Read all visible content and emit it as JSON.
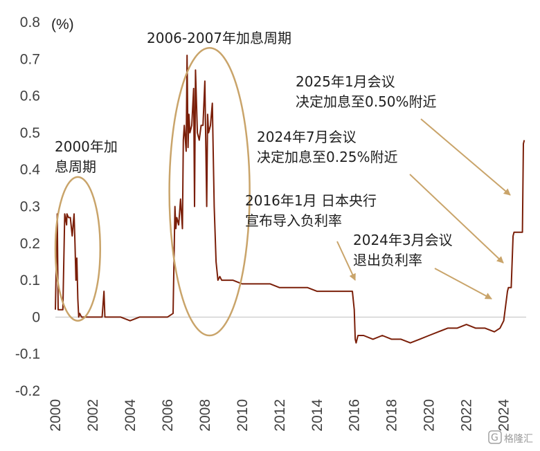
{
  "chart_data": {
    "type": "line",
    "unit_label": "(%)",
    "title": "",
    "xlabel": "",
    "ylabel": "",
    "ylim": [
      -0.2,
      0.8
    ],
    "xlim": [
      2000,
      2025.2
    ],
    "grid": false,
    "legend": "none",
    "y_ticks": [
      "0.8",
      "0.7",
      "0.6",
      "0.5",
      "0.4",
      "0.3",
      "0.2",
      "0.1",
      "0",
      "-0.1",
      "-0.2"
    ],
    "y_tick_values": [
      0.8,
      0.7,
      0.6,
      0.5,
      0.4,
      0.3,
      0.2,
      0.1,
      0,
      -0.1,
      -0.2
    ],
    "x_ticks": [
      "2000",
      "2002",
      "2004",
      "2006",
      "2008",
      "2010",
      "2012",
      "2014",
      "2016",
      "2018",
      "2020",
      "2022",
      "2024"
    ],
    "x_tick_values": [
      2000,
      2002,
      2004,
      2006,
      2008,
      2010,
      2012,
      2014,
      2016,
      2018,
      2020,
      2022,
      2024
    ],
    "series": [
      {
        "color": "#7a1e08",
        "x": [
          2000.0,
          2000.1,
          2000.15,
          2000.3,
          2000.4,
          2000.5,
          2000.6,
          2000.62,
          2000.7,
          2000.8,
          2000.9,
          2001.0,
          2001.05,
          2001.1,
          2001.15,
          2001.2,
          2001.25,
          2001.3,
          2001.4,
          2001.5,
          2002.0,
          2002.5,
          2002.6,
          2002.65,
          2003.0,
          2003.5,
          2004.0,
          2004.5,
          2005.0,
          2005.5,
          2006.0,
          2006.3,
          2006.4,
          2006.45,
          2006.5,
          2006.6,
          2006.7,
          2006.8,
          2006.85,
          2006.9,
          2007.0,
          2007.05,
          2007.1,
          2007.15,
          2007.2,
          2007.3,
          2007.4,
          2007.45,
          2007.5,
          2007.6,
          2007.7,
          2007.8,
          2007.9,
          2008.0,
          2008.1,
          2008.15,
          2008.2,
          2008.3,
          2008.4,
          2008.5,
          2008.6,
          2008.7,
          2008.8,
          2008.9,
          2009.0,
          2009.5,
          2010.0,
          2010.5,
          2011.0,
          2011.5,
          2012.0,
          2012.5,
          2013.0,
          2013.5,
          2014.0,
          2014.5,
          2015.0,
          2015.5,
          2015.9,
          2016.0,
          2016.05,
          2016.1,
          2016.2,
          2016.5,
          2017.0,
          2017.5,
          2018.0,
          2018.5,
          2019.0,
          2019.5,
          2020.0,
          2020.5,
          2021.0,
          2021.5,
          2022.0,
          2022.5,
          2023.0,
          2023.5,
          2023.8,
          2024.0,
          2024.2,
          2024.25,
          2024.4,
          2024.5,
          2024.55,
          2024.7,
          2024.9,
          2025.0,
          2025.05,
          2025.1
        ],
        "values": [
          0.02,
          0.28,
          0.02,
          0.02,
          0.02,
          0.28,
          0.25,
          0.28,
          0.27,
          0.27,
          0.22,
          0.28,
          0.2,
          0.1,
          0.16,
          0.05,
          0.0,
          0.01,
          0.0,
          0.0,
          0.0,
          0.0,
          0.07,
          0.0,
          0.0,
          0.0,
          -0.01,
          0.0,
          0.0,
          0.0,
          0.0,
          0.01,
          0.3,
          0.24,
          0.27,
          0.25,
          0.32,
          0.24,
          0.48,
          0.52,
          0.45,
          0.71,
          0.46,
          0.55,
          0.5,
          0.52,
          0.62,
          0.3,
          0.67,
          0.5,
          0.48,
          0.52,
          0.52,
          0.64,
          0.3,
          0.55,
          0.5,
          0.52,
          0.58,
          0.3,
          0.15,
          0.1,
          0.11,
          0.1,
          0.1,
          0.1,
          0.09,
          0.09,
          0.09,
          0.09,
          0.08,
          0.08,
          0.08,
          0.08,
          0.07,
          0.07,
          0.07,
          0.07,
          0.07,
          0.02,
          -0.06,
          -0.07,
          -0.05,
          -0.05,
          -0.06,
          -0.05,
          -0.06,
          -0.06,
          -0.07,
          -0.06,
          -0.05,
          -0.04,
          -0.03,
          -0.03,
          -0.02,
          -0.03,
          -0.03,
          -0.04,
          -0.03,
          -0.01,
          0.07,
          0.08,
          0.08,
          0.22,
          0.23,
          0.23,
          0.23,
          0.23,
          0.47,
          0.48
        ]
      }
    ],
    "annotations": [
      {
        "lines": [
          "2000年加",
          "息周期"
        ]
      },
      {
        "lines": [
          "2006-2007年加息周期"
        ]
      },
      {
        "lines": [
          "2016年1月 日本央行",
          "宣布导入负利率"
        ]
      },
      {
        "lines": [
          "2024年3月会议",
          "退出负利率"
        ]
      },
      {
        "lines": [
          "2024年7月会议",
          "决定加息至0.25%附近"
        ]
      },
      {
        "lines": [
          "2025年1月会议",
          "决定加息至0.50%附近"
        ]
      }
    ],
    "colors": {
      "line": "#7a1e08",
      "highlight": "#c9a46a",
      "axis": "#bfbfbf",
      "text": "#404040"
    }
  },
  "watermark": "格隆汇"
}
